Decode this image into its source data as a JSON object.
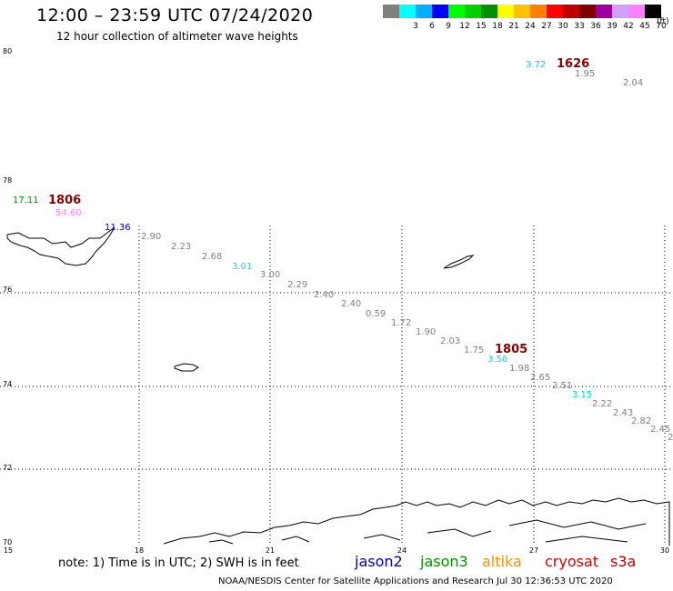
{
  "header": {
    "title": "12:00 – 23:59 UTC 07/24/2020",
    "subtitle": "12 hour collection of altimeter wave heights"
  },
  "legend": {
    "unit": "(ft)",
    "colors": [
      "#808080",
      "#00ffff",
      "#00b0ff",
      "#0000ff",
      "#00ff00",
      "#00d000",
      "#009000",
      "#ffff00",
      "#ffc000",
      "#ff8000",
      "#ff0000",
      "#c00000",
      "#800000",
      "#a000a0",
      "#d0a0ff",
      "#ff80ff",
      "#000000"
    ],
    "labels": [
      "",
      "3",
      "6",
      "9",
      "12",
      "15",
      "18",
      "21",
      "24",
      "27",
      "30",
      "33",
      "36",
      "39",
      "42",
      "45",
      "70"
    ]
  },
  "axes": {
    "lat_labels": [
      "80",
      "78",
      "76",
      "74",
      "72",
      "70"
    ],
    "lon_labels": [
      "15",
      "18",
      "21",
      "24",
      "27",
      "30"
    ]
  },
  "observations": [
    {
      "text": "17.11",
      "color": "#009000"
    },
    {
      "text": "54.60",
      "color": "#ff80ff"
    },
    {
      "text": "11.36",
      "color": "#0000c0"
    },
    {
      "text": "2.90",
      "color": "#808080"
    },
    {
      "text": "2.23",
      "color": "#808080"
    },
    {
      "text": "2.68",
      "color": "#808080"
    },
    {
      "text": "3.01",
      "color": "#00e0e0"
    },
    {
      "text": "3.00",
      "color": "#808080"
    },
    {
      "text": "2.29",
      "color": "#808080"
    },
    {
      "text": "2.40",
      "color": "#808080"
    },
    {
      "text": "2.40",
      "color": "#808080"
    },
    {
      "text": "0.59",
      "color": "#808080"
    },
    {
      "text": "1.72",
      "color": "#808080"
    },
    {
      "text": "1.90",
      "color": "#808080"
    },
    {
      "text": "2.03",
      "color": "#808080"
    },
    {
      "text": "1.75",
      "color": "#808080"
    },
    {
      "text": "3.56",
      "color": "#00e0e0"
    },
    {
      "text": "1.98",
      "color": "#808080"
    },
    {
      "text": "2.65",
      "color": "#808080"
    },
    {
      "text": "2.51",
      "color": "#808080"
    },
    {
      "text": "3.15",
      "color": "#00e0e0"
    },
    {
      "text": "2.22",
      "color": "#808080"
    },
    {
      "text": "2.43",
      "color": "#808080"
    },
    {
      "text": "2.82",
      "color": "#808080"
    },
    {
      "text": "2.45",
      "color": "#808080"
    },
    {
      "text": "2",
      "color": "#808080"
    },
    {
      "text": "3.72",
      "color": "#00e0e0"
    },
    {
      "text": "1.95",
      "color": "#808080"
    },
    {
      "text": "2.04",
      "color": "#808080"
    }
  ],
  "pass_times": [
    "1806",
    "1805",
    "1626"
  ],
  "note": "note: 1) Time is in UTC; 2) SWH is in feet",
  "satellites": [
    {
      "name": "jason2",
      "color": "#0000c0"
    },
    {
      "name": "jason3",
      "color": "#009000"
    },
    {
      "name": "altika",
      "color": "#ff9000"
    },
    {
      "name": "cryosat",
      "color": "#e00000"
    },
    {
      "name": "s3a",
      "color": "#c00000"
    }
  ],
  "footer": "NOAA/NESDIS Center for Satellite Applications and Research   Jul 30 12:36:53 UTC 2020"
}
